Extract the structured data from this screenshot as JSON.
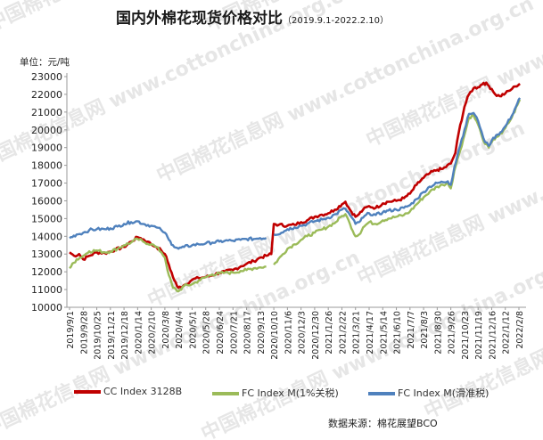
{
  "title": "国内外棉花现货价格对比",
  "subtitle": "（2019.9.1-2022.2.10）",
  "unit_label": "单位：元/吨",
  "source": "数据来源：棉花展望BCO",
  "watermark": "中国棉花信息网 www.cottonchina.org.cn",
  "chart_data": {
    "type": "line",
    "ylim": [
      10000,
      23000
    ],
    "yticks": [
      10000,
      11000,
      12000,
      13000,
      14000,
      15000,
      16000,
      17000,
      18000,
      19000,
      20000,
      21000,
      22000,
      23000
    ],
    "xticks": [
      "2019/9/1",
      "2019/9/28",
      "2019/10/25",
      "2019/11/21",
      "2019/12/18",
      "2020/1/14",
      "2020/2/10",
      "2020/3/8",
      "2020/4/4",
      "2020/5/1",
      "2020/5/28",
      "2020/6/24",
      "2020/7/21",
      "2020/8/17",
      "2020/9/13",
      "2020/10/10",
      "2020/11/6",
      "2020/12/3",
      "2020/12/30",
      "2021/1/26",
      "2021/2/22",
      "2021/3/21",
      "2021/4/17",
      "2021/5/14",
      "2021/6/10",
      "2021/7/7",
      "2021/8/3",
      "2021/8/30",
      "2021/9/26",
      "2021/10/23",
      "2021/11/19",
      "2021/12/16",
      "2022/1/12",
      "2022/2/8"
    ],
    "grid": false,
    "legend_position": "bottom",
    "series": [
      {
        "name": "CC Index 3128B",
        "color": "#c00000",
        "points": [
          [
            "2019/9/1",
            13100
          ],
          [
            "2019/9/10",
            12900
          ],
          [
            "2019/9/20",
            13000
          ],
          [
            "2019/9/28",
            12700
          ],
          [
            "2019/10/10",
            12900
          ],
          [
            "2019/10/25",
            13100
          ],
          [
            "2019/11/10",
            13050
          ],
          [
            "2019/11/21",
            13150
          ],
          [
            "2019/12/1",
            13250
          ],
          [
            "2019/12/18",
            13400
          ],
          [
            "2020/1/1",
            13700
          ],
          [
            "2020/1/14",
            13950
          ],
          [
            "2020/1/20",
            13900
          ],
          [
            "2020/2/3",
            13700
          ],
          [
            "2020/2/10",
            13550
          ],
          [
            "2020/2/20",
            13400
          ],
          [
            "2020/3/1",
            13200
          ],
          [
            "2020/3/8",
            13000
          ],
          [
            "2020/3/16",
            12400
          ],
          [
            "2020/3/24",
            11700
          ],
          [
            "2020/4/1",
            11200
          ],
          [
            "2020/4/4",
            11100
          ],
          [
            "2020/4/15",
            11250
          ],
          [
            "2020/5/1",
            11550
          ],
          [
            "2020/5/14",
            11650
          ],
          [
            "2020/5/28",
            11700
          ],
          [
            "2020/6/10",
            11800
          ],
          [
            "2020/6/24",
            11950
          ],
          [
            "2020/7/5",
            12000
          ],
          [
            "2020/7/21",
            12100
          ],
          [
            "2020/8/5",
            12300
          ],
          [
            "2020/8/17",
            12450
          ],
          [
            "2020/8/31",
            12600
          ],
          [
            "2020/9/13",
            12800
          ],
          [
            "2020/9/25",
            12900
          ],
          [
            "2020/10/5",
            13000
          ],
          [
            "2020/10/10",
            14700
          ],
          [
            "2020/10/20",
            14650
          ],
          [
            "2020/11/6",
            14600
          ],
          [
            "2020/11/20",
            14650
          ],
          [
            "2020/12/3",
            14800
          ],
          [
            "2020/12/15",
            14900
          ],
          [
            "2020/12/30",
            15100
          ],
          [
            "2021/1/10",
            15200
          ],
          [
            "2021/1/26",
            15300
          ],
          [
            "2021/2/8",
            15500
          ],
          [
            "2021/2/22",
            15800
          ],
          [
            "2021/3/1",
            15950
          ],
          [
            "2021/3/10",
            15500
          ],
          [
            "2021/3/21",
            15100
          ],
          [
            "2021/3/28",
            15250
          ],
          [
            "2021/4/5",
            15500
          ],
          [
            "2021/4/17",
            15700
          ],
          [
            "2021/4/30",
            15600
          ],
          [
            "2021/5/14",
            15850
          ],
          [
            "2021/5/25",
            15950
          ],
          [
            "2021/6/10",
            16000
          ],
          [
            "2021/6/25",
            16150
          ],
          [
            "2021/7/7",
            16400
          ],
          [
            "2021/7/20",
            16900
          ],
          [
            "2021/8/3",
            17300
          ],
          [
            "2021/8/15",
            17550
          ],
          [
            "2021/8/30",
            17750
          ],
          [
            "2021/9/10",
            17800
          ],
          [
            "2021/9/26",
            18100
          ],
          [
            "2021/10/5",
            18700
          ],
          [
            "2021/10/12",
            19900
          ],
          [
            "2021/10/23",
            21300
          ],
          [
            "2021/11/1",
            22000
          ],
          [
            "2021/11/10",
            22350
          ],
          [
            "2021/11/19",
            22400
          ],
          [
            "2021/11/30",
            22650
          ],
          [
            "2021/12/8",
            22550
          ],
          [
            "2021/12/16",
            22300
          ],
          [
            "2021/12/23",
            22000
          ],
          [
            "2022/1/1",
            21900
          ],
          [
            "2022/1/12",
            22050
          ],
          [
            "2022/1/25",
            22300
          ],
          [
            "2022/2/1",
            22450
          ],
          [
            "2022/2/10",
            22600
          ]
        ]
      },
      {
        "name": "FC Index M(1%关税)",
        "color": "#9bbb59",
        "points": [
          [
            "2019/9/1",
            12200
          ],
          [
            "2019/9/15",
            12700
          ],
          [
            "2019/9/28",
            12900
          ],
          [
            "2019/10/10",
            13150
          ],
          [
            "2019/10/25",
            13200
          ],
          [
            "2019/11/10",
            13100
          ],
          [
            "2019/11/21",
            13150
          ],
          [
            "2019/12/5",
            13300
          ],
          [
            "2019/12/18",
            13500
          ],
          [
            "2020/1/1",
            13650
          ],
          [
            "2020/1/14",
            13850
          ],
          [
            "2020/1/25",
            13700
          ],
          [
            "2020/2/10",
            13550
          ],
          [
            "2020/2/20",
            13400
          ],
          [
            "2020/3/1",
            13100
          ],
          [
            "2020/3/8",
            12800
          ],
          [
            "2020/3/16",
            11800
          ],
          [
            "2020/3/24",
            11100
          ],
          [
            "2020/4/4",
            10900
          ],
          [
            "2020/4/15",
            11200
          ],
          [
            "2020/5/1",
            11300
          ],
          [
            "2020/5/14",
            11500
          ],
          [
            "2020/5/28",
            11700
          ],
          [
            "2020/6/10",
            11850
          ],
          [
            "2020/6/24",
            11900
          ],
          [
            "2020/7/5",
            11950
          ],
          [
            "2020/7/21",
            11950
          ],
          [
            "2020/8/5",
            12050
          ],
          [
            "2020/8/17",
            12100
          ],
          [
            "2020/8/31",
            12200
          ],
          [
            "2020/9/13",
            12250
          ],
          [
            "2020/9/25",
            12300
          ]
        ]
      },
      {
        "name": "FC Index M(1%关税)",
        "color": "#9bbb59",
        "points": [
          [
            "2020/10/10",
            12400
          ],
          [
            "2020/10/25",
            12900
          ],
          [
            "2020/11/6",
            13300
          ],
          [
            "2020/11/20",
            13550
          ],
          [
            "2020/12/3",
            13800
          ],
          [
            "2020/12/15",
            14000
          ],
          [
            "2020/12/30",
            14200
          ],
          [
            "2021/1/15",
            14400
          ],
          [
            "2021/1/26",
            14550
          ],
          [
            "2021/2/10",
            14800
          ],
          [
            "2021/2/22",
            15150
          ],
          [
            "2021/3/1",
            15250
          ],
          [
            "2021/3/10",
            14700
          ],
          [
            "2021/3/21",
            14000
          ],
          [
            "2021/3/28",
            14100
          ],
          [
            "2021/4/5",
            14500
          ],
          [
            "2021/4/17",
            14800
          ],
          [
            "2021/4/30",
            14700
          ],
          [
            "2021/5/14",
            14900
          ],
          [
            "2021/5/25",
            15000
          ],
          [
            "2021/6/10",
            15100
          ],
          [
            "2021/6/25",
            15200
          ],
          [
            "2021/7/7",
            15400
          ],
          [
            "2021/7/20",
            15800
          ],
          [
            "2021/8/3",
            16200
          ],
          [
            "2021/8/15",
            16500
          ],
          [
            "2021/8/30",
            16800
          ],
          [
            "2021/9/10",
            16900
          ],
          [
            "2021/9/20",
            17000
          ],
          [
            "2021/9/26",
            16700
          ],
          [
            "2021/10/3",
            17700
          ],
          [
            "2021/10/12",
            18600
          ],
          [
            "2021/10/23",
            19700
          ],
          [
            "2021/11/1",
            20700
          ],
          [
            "2021/11/10",
            20800
          ],
          [
            "2021/11/19",
            20300
          ],
          [
            "2021/11/26",
            19700
          ],
          [
            "2021/12/3",
            19200
          ],
          [
            "2021/12/10",
            19000
          ],
          [
            "2021/12/16",
            19300
          ],
          [
            "2021/12/25",
            19600
          ],
          [
            "2022/1/5",
            19800
          ],
          [
            "2022/1/12",
            20100
          ],
          [
            "2022/1/25",
            20700
          ],
          [
            "2022/2/5",
            21400
          ],
          [
            "2022/2/10",
            21700
          ]
        ]
      },
      {
        "name": "FC Index M(滑准税)",
        "color": "#4f81bd",
        "points": [
          [
            "2019/9/1",
            13900
          ],
          [
            "2019/9/15",
            14100
          ],
          [
            "2019/9/28",
            14200
          ],
          [
            "2019/10/10",
            14350
          ],
          [
            "2019/10/25",
            14400
          ],
          [
            "2019/11/10",
            14400
          ],
          [
            "2019/11/21",
            14450
          ],
          [
            "2019/12/5",
            14550
          ],
          [
            "2019/12/18",
            14700
          ],
          [
            "2020/1/1",
            14800
          ],
          [
            "2020/1/14",
            14850
          ],
          [
            "2020/1/25",
            14700
          ],
          [
            "2020/2/10",
            14600
          ],
          [
            "2020/2/20",
            14500
          ],
          [
            "2020/3/1",
            14350
          ],
          [
            "2020/3/8",
            14200
          ],
          [
            "2020/3/16",
            13800
          ],
          [
            "2020/3/24",
            13500
          ],
          [
            "2020/4/4",
            13300
          ],
          [
            "2020/4/15",
            13400
          ],
          [
            "2020/5/1",
            13500
          ],
          [
            "2020/5/14",
            13550
          ],
          [
            "2020/5/28",
            13600
          ],
          [
            "2020/6/10",
            13650
          ],
          [
            "2020/6/24",
            13700
          ],
          [
            "2020/7/5",
            13750
          ],
          [
            "2020/7/21",
            13750
          ],
          [
            "2020/8/5",
            13800
          ],
          [
            "2020/8/17",
            13850
          ],
          [
            "2020/8/31",
            13850
          ],
          [
            "2020/9/13",
            13900
          ],
          [
            "2020/9/25",
            13900
          ]
        ]
      },
      {
        "name": "FC Index M(滑准税)",
        "color": "#4f81bd",
        "points": [
          [
            "2020/10/10",
            14100
          ],
          [
            "2020/10/25",
            14200
          ],
          [
            "2020/11/6",
            14400
          ],
          [
            "2020/11/20",
            14500
          ],
          [
            "2020/12/3",
            14600
          ],
          [
            "2020/12/15",
            14700
          ],
          [
            "2020/12/30",
            14850
          ],
          [
            "2021/1/15",
            14950
          ],
          [
            "2021/1/26",
            15050
          ],
          [
            "2021/2/10",
            15250
          ],
          [
            "2021/2/22",
            15500
          ],
          [
            "2021/3/1",
            15550
          ],
          [
            "2021/3/10",
            15200
          ],
          [
            "2021/3/21",
            14700
          ],
          [
            "2021/3/28",
            14800
          ],
          [
            "2021/4/5",
            15050
          ],
          [
            "2021/4/17",
            15300
          ],
          [
            "2021/4/30",
            15200
          ],
          [
            "2021/5/14",
            15350
          ],
          [
            "2021/5/25",
            15450
          ],
          [
            "2021/6/10",
            15500
          ],
          [
            "2021/6/25",
            15600
          ],
          [
            "2021/7/7",
            15750
          ],
          [
            "2021/7/20",
            16100
          ],
          [
            "2021/8/3",
            16500
          ],
          [
            "2021/8/15",
            16800
          ],
          [
            "2021/8/30",
            17000
          ],
          [
            "2021/9/10",
            17050
          ],
          [
            "2021/9/20",
            17100
          ],
          [
            "2021/9/26",
            16900
          ],
          [
            "2021/10/3",
            17900
          ],
          [
            "2021/10/12",
            18900
          ],
          [
            "2021/10/23",
            20000
          ],
          [
            "2021/11/1",
            20900
          ],
          [
            "2021/11/10",
            20950
          ],
          [
            "2021/11/19",
            20500
          ],
          [
            "2021/11/26",
            19900
          ],
          [
            "2021/12/3",
            19300
          ],
          [
            "2021/12/10",
            19100
          ],
          [
            "2021/12/16",
            19400
          ],
          [
            "2021/12/25",
            19700
          ],
          [
            "2022/1/5",
            19900
          ],
          [
            "2022/1/12",
            20200
          ],
          [
            "2022/1/25",
            20800
          ],
          [
            "2022/2/5",
            21500
          ],
          [
            "2022/2/10",
            21800
          ]
        ]
      }
    ]
  },
  "legend": [
    {
      "label": "CC Index 3128B",
      "color": "#c00000"
    },
    {
      "label": "FC Index M(1%关税)",
      "color": "#9bbb59"
    },
    {
      "label": "FC Index M(滑准税)",
      "color": "#4f81bd"
    }
  ]
}
